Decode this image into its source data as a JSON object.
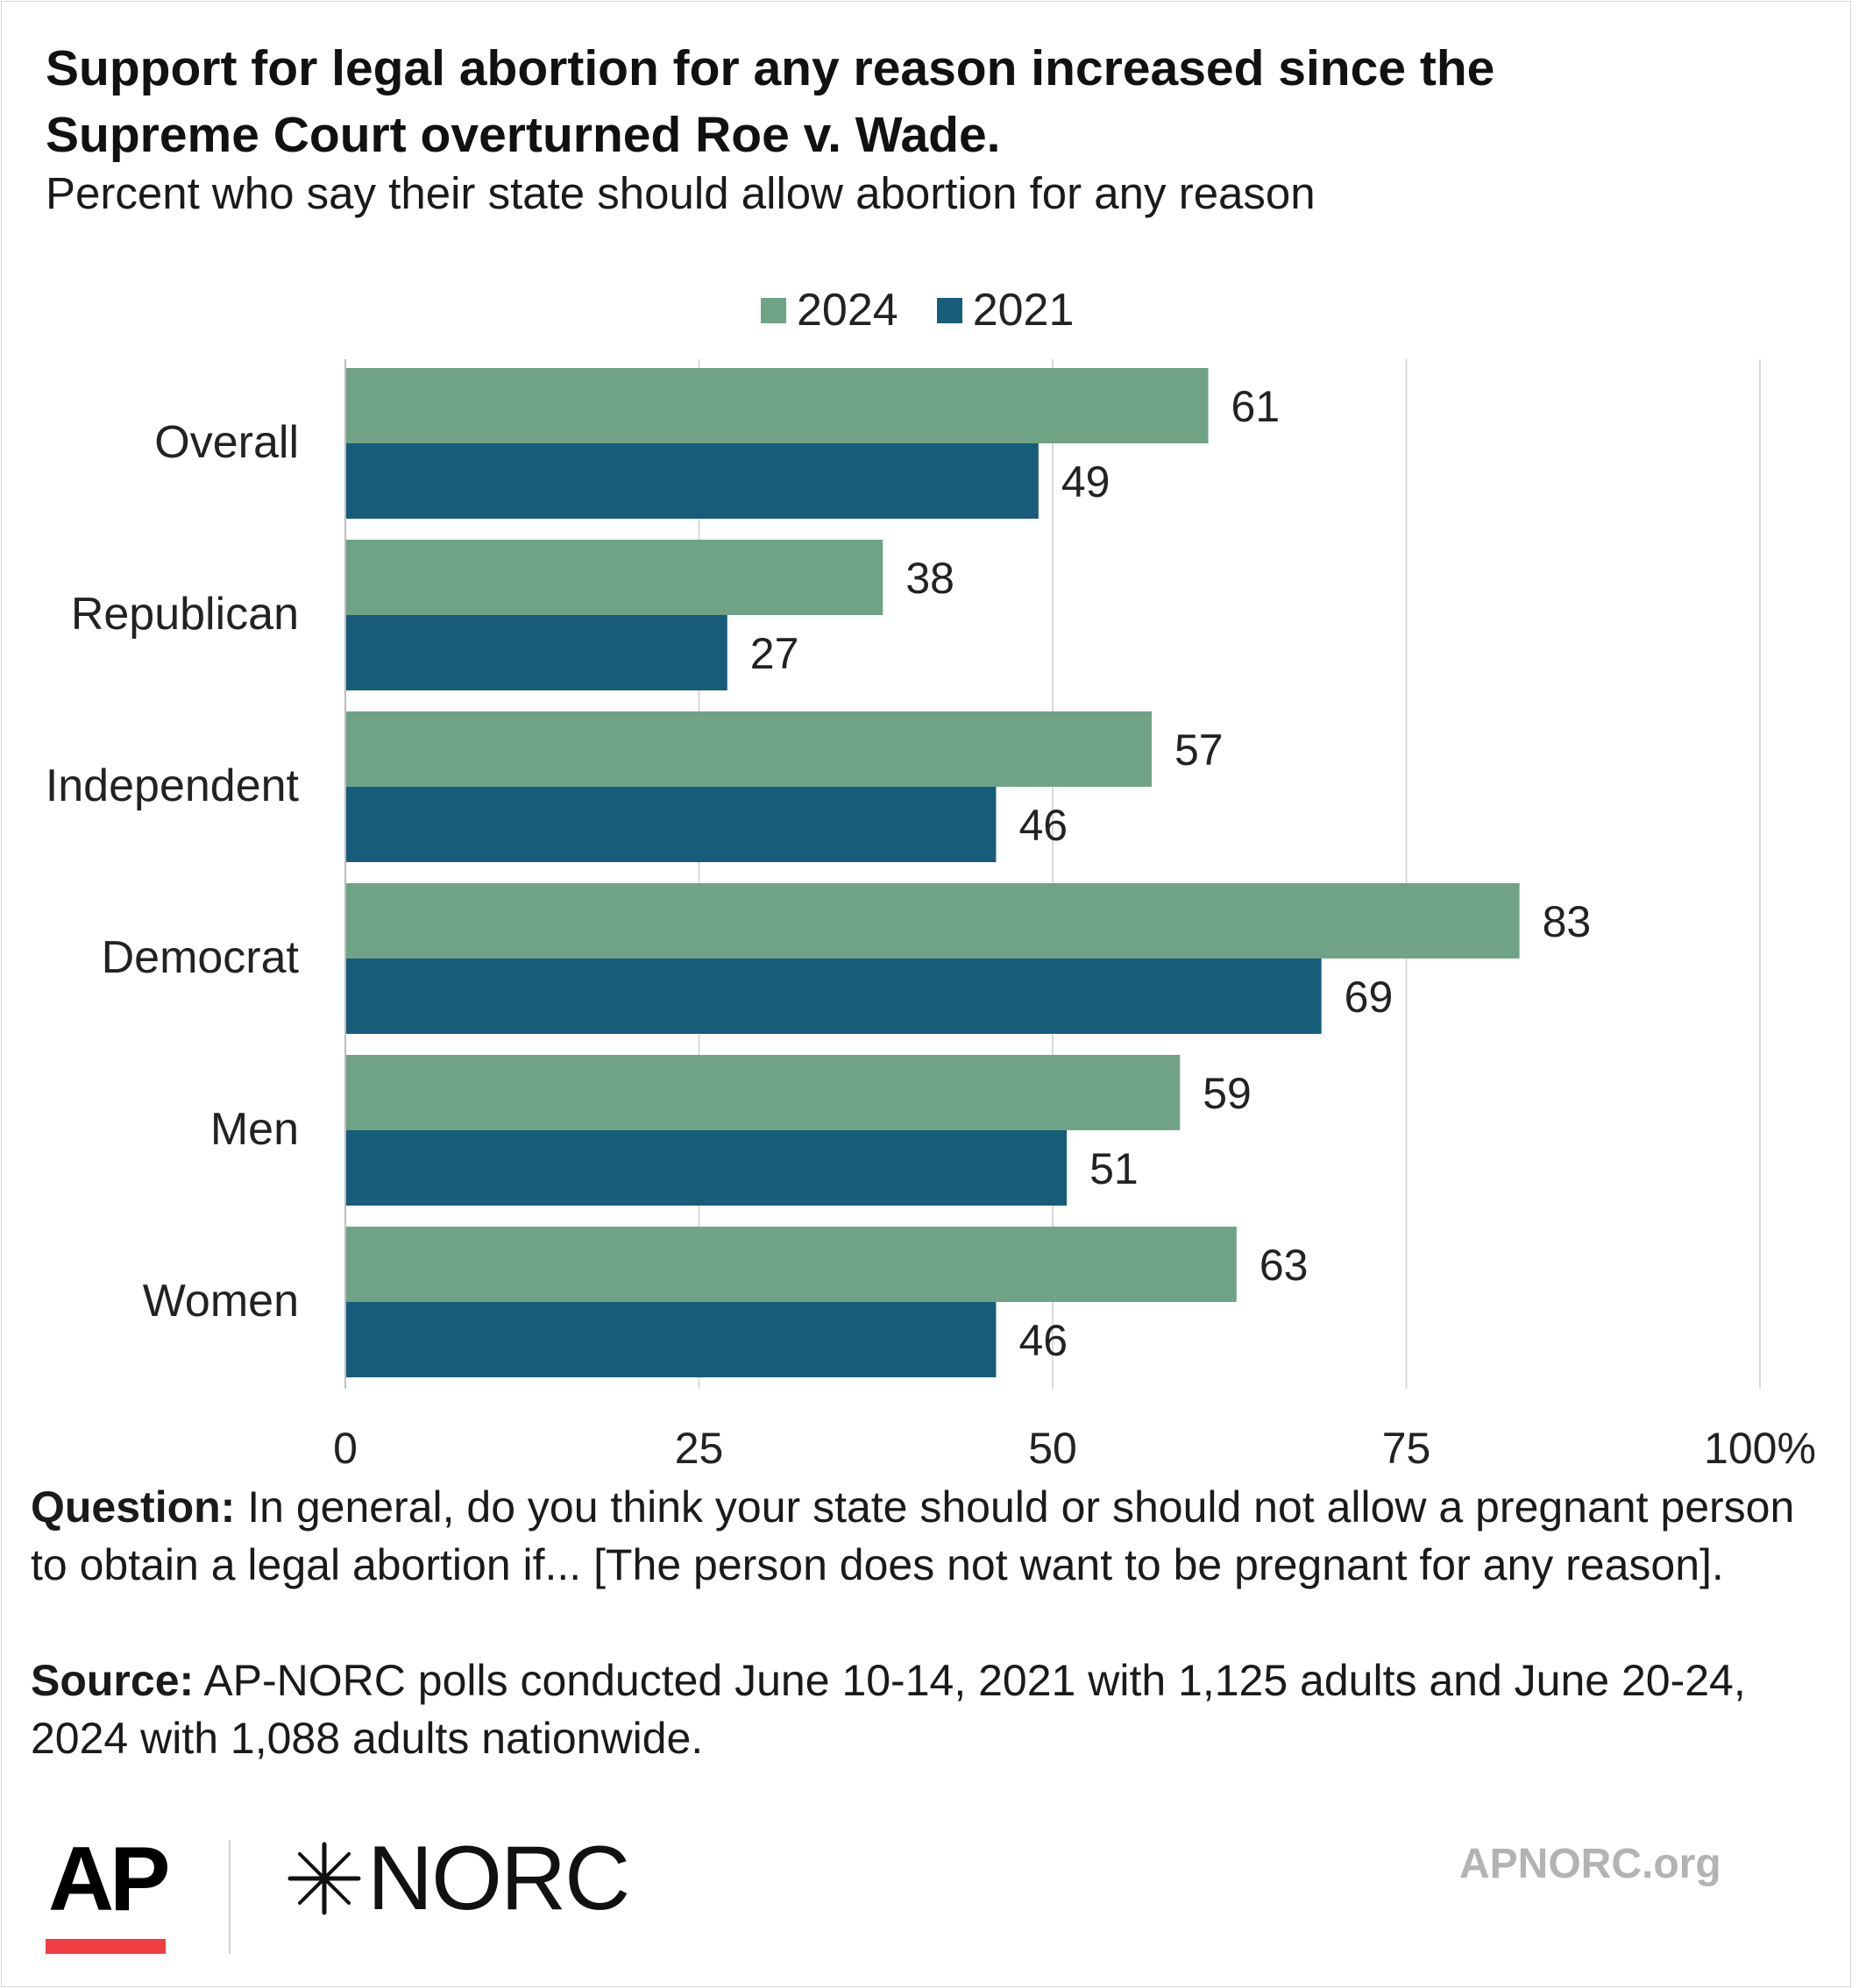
{
  "title": "Support for legal abortion for any reason increased since the Supreme Court overturned Roe v. Wade.",
  "subtitle": "Percent who say their state should allow abortion for any reason",
  "legend": [
    {
      "label": "2024",
      "color": "#70a386"
    },
    {
      "label": "2021",
      "color": "#175c7b"
    }
  ],
  "chart_data": {
    "type": "bar",
    "orientation": "horizontal",
    "categories": [
      "Overall",
      "Republican",
      "Independent",
      "Democrat",
      "Men",
      "Women"
    ],
    "series": [
      {
        "name": "2024",
        "color": "#70a386",
        "values": [
          61,
          38,
          57,
          83,
          59,
          63
        ]
      },
      {
        "name": "2021",
        "color": "#175c7b",
        "values": [
          49,
          27,
          46,
          69,
          51,
          46
        ]
      }
    ],
    "xlim": [
      0,
      100
    ],
    "xticks": [
      "0",
      "25",
      "50",
      "75",
      "100%"
    ],
    "xtick_values": [
      0,
      25,
      50,
      75,
      100
    ],
    "grid": true,
    "legend_position": "top"
  },
  "footer": {
    "question_label": "Question:",
    "question_text": "In general, do you think your state should or should not allow a pregnant person to obtain a legal abortion if... [The person does not want to be pregnant for any reason].",
    "source_label": "Source:",
    "source_text": "AP-NORC polls conducted June 10-14, 2021 with 1,125 adults and June 20-24, 2024 with 1,088 adults nationwide."
  },
  "logos": {
    "ap": "AP",
    "norc": "NORC",
    "norc_mark": "star-burst-icon"
  },
  "website": "APNORC.org"
}
